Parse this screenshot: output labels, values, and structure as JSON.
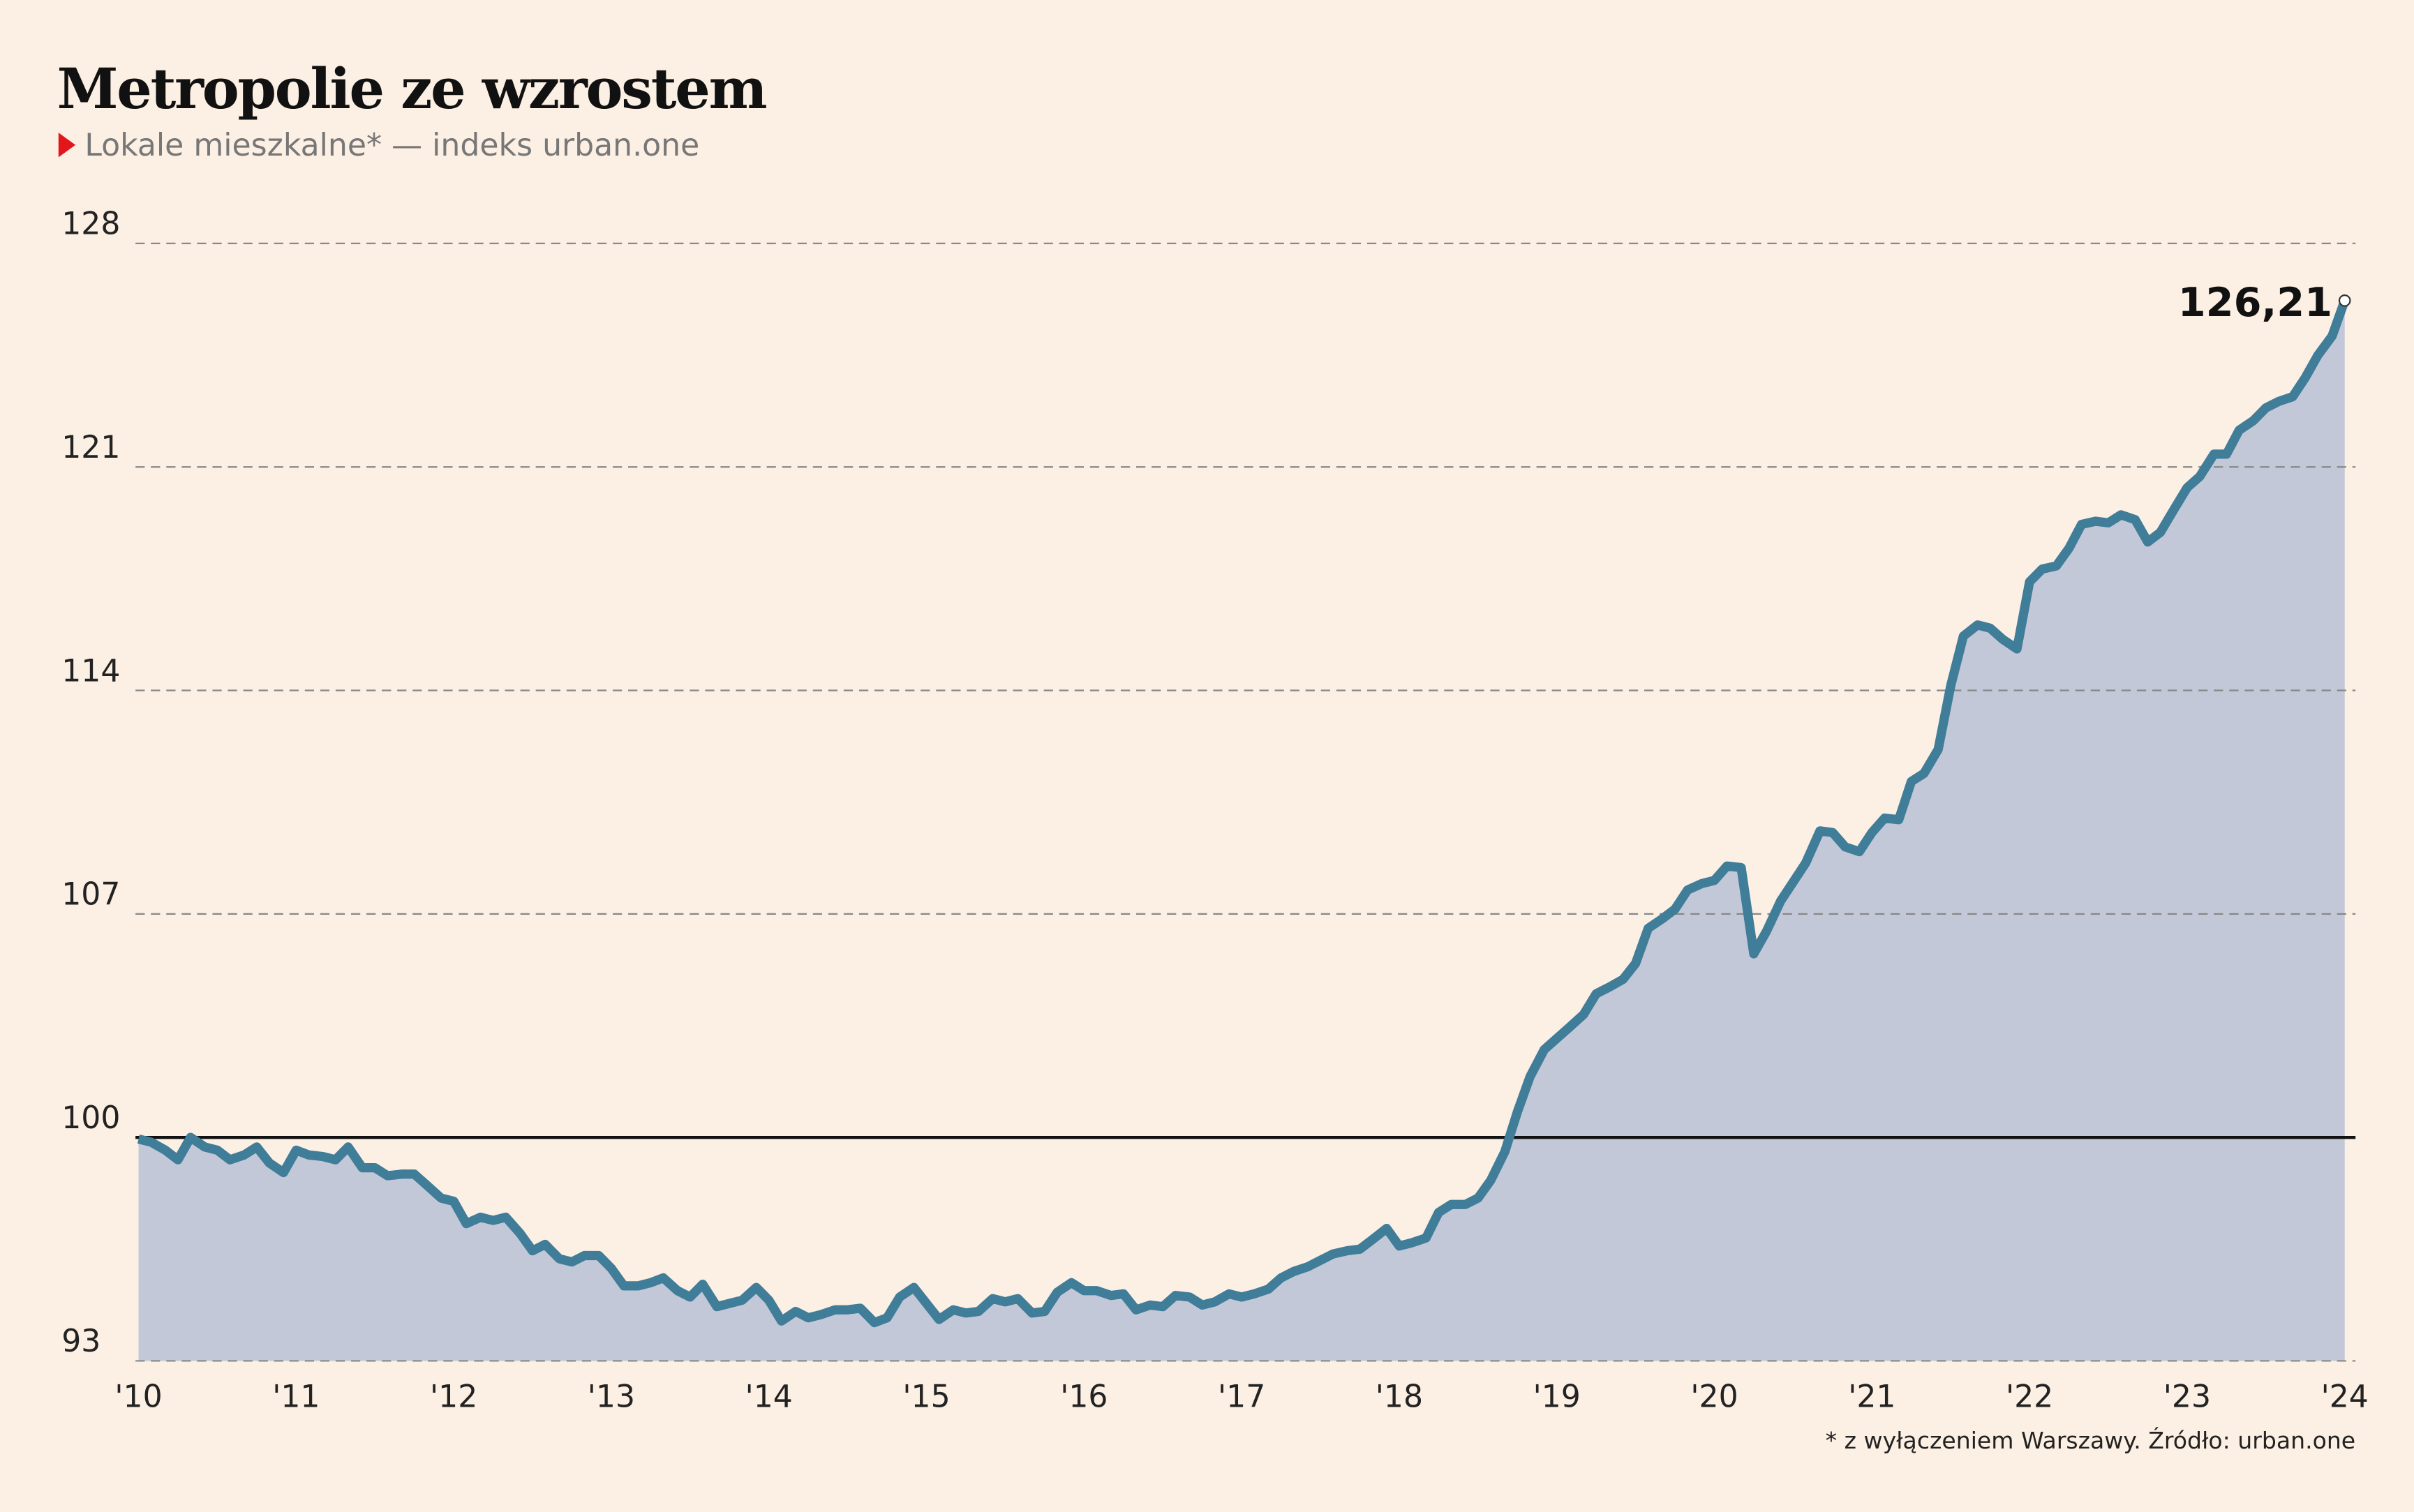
{
  "chart_data": {
    "type": "area",
    "title": "Metropolie ze wzrostem",
    "subtitle": "Lokale mieszkalne* — indeks urban.one",
    "footnote": "* z wyłączeniem Warszawy. Źródło: urban.one",
    "color": "#3f7d99",
    "fill": "#c3c8d8",
    "grid": true,
    "baseline": 100,
    "ylim": [
      93,
      128
    ],
    "yticks": [
      93,
      100,
      107,
      114,
      121,
      128
    ],
    "xlim": [
      2010,
      2024
    ],
    "xticks": [
      {
        "value": 2010,
        "label": "'10"
      },
      {
        "value": 2011,
        "label": "'11"
      },
      {
        "value": 2012,
        "label": "'12"
      },
      {
        "value": 2013,
        "label": "'13"
      },
      {
        "value": 2014,
        "label": "'14"
      },
      {
        "value": 2015,
        "label": "'15"
      },
      {
        "value": 2016,
        "label": "'16"
      },
      {
        "value": 2017,
        "label": "'17"
      },
      {
        "value": 2018,
        "label": "'18"
      },
      {
        "value": 2019,
        "label": "'19"
      },
      {
        "value": 2020,
        "label": "'20"
      },
      {
        "value": 2021,
        "label": "'21"
      },
      {
        "value": 2022,
        "label": "'22"
      },
      {
        "value": 2023,
        "label": "'23"
      },
      {
        "value": 2024,
        "label": "'24"
      }
    ],
    "x": [
      2010,
      2010.08,
      2010.17,
      2010.25,
      2010.33,
      2010.42,
      2010.5,
      2010.58,
      2010.67,
      2010.75,
      2010.83,
      2010.92,
      2011,
      2011.08,
      2011.17,
      2011.25,
      2011.33,
      2011.42,
      2011.5,
      2011.58,
      2011.67,
      2011.75,
      2011.83,
      2011.92,
      2012,
      2012.08,
      2012.17,
      2012.25,
      2012.33,
      2012.42,
      2012.5,
      2012.58,
      2012.67,
      2012.75,
      2012.83,
      2012.92,
      2013,
      2013.08,
      2013.17,
      2013.25,
      2013.33,
      2013.42,
      2013.5,
      2013.58,
      2013.67,
      2013.75,
      2013.83,
      2013.92,
      2014,
      2014.08,
      2014.17,
      2014.25,
      2014.33,
      2014.42,
      2014.5,
      2014.58,
      2014.67,
      2014.75,
      2014.83,
      2014.92,
      2015,
      2015.08,
      2015.17,
      2015.25,
      2015.33,
      2015.42,
      2015.5,
      2015.58,
      2015.67,
      2015.75,
      2015.83,
      2015.92,
      2016,
      2016.08,
      2016.17,
      2016.25,
      2016.33,
      2016.42,
      2016.5,
      2016.58,
      2016.67,
      2016.75,
      2016.83,
      2016.92,
      2017,
      2017.08,
      2017.17,
      2017.25,
      2017.33,
      2017.42,
      2017.5,
      2017.58,
      2017.67,
      2017.75,
      2017.83,
      2017.92,
      2018,
      2018.08,
      2018.17,
      2018.25,
      2018.33,
      2018.42,
      2018.5,
      2018.58,
      2018.67,
      2018.75,
      2018.83,
      2018.92,
      2019,
      2019.08,
      2019.17,
      2019.25,
      2019.33,
      2019.42,
      2019.5,
      2019.58,
      2019.67,
      2019.75,
      2019.83,
      2019.92,
      2020,
      2020.08,
      2020.17,
      2020.25,
      2020.33,
      2020.42,
      2020.5,
      2020.58,
      2020.67,
      2020.75,
      2020.83,
      2020.92,
      2021,
      2021.08,
      2021.17,
      2021.25,
      2021.33,
      2021.42,
      2021.5,
      2021.58,
      2021.67,
      2021.75,
      2021.83,
      2021.92,
      2022,
      2022.08,
      2022.17,
      2022.25,
      2022.33,
      2022.42,
      2022.5,
      2022.58,
      2022.67,
      2022.75,
      2022.83,
      2022.92,
      2023,
      2023.08,
      2023.17,
      2023.25,
      2023.33,
      2023.42,
      2023.5,
      2023.58,
      2023.67,
      2023.75,
      2023.83,
      2023.92,
      2024
    ],
    "values": [
      99.95,
      99.85,
      99.6,
      99.3,
      100.0,
      99.7,
      99.6,
      99.3,
      99.45,
      99.7,
      99.2,
      98.9,
      99.6,
      99.45,
      99.4,
      99.3,
      99.7,
      99.05,
      99.05,
      98.8,
      98.85,
      98.85,
      98.5,
      98.1,
      98.0,
      97.3,
      97.5,
      97.4,
      97.5,
      97.0,
      96.45,
      96.65,
      96.2,
      96.1,
      96.3,
      96.3,
      95.9,
      95.35,
      95.35,
      95.45,
      95.6,
      95.2,
      95.0,
      95.4,
      94.7,
      94.8,
      94.9,
      95.3,
      94.9,
      94.25,
      94.55,
      94.35,
      94.45,
      94.6,
      94.6,
      94.65,
      94.2,
      94.35,
      95.0,
      95.3,
      94.8,
      94.3,
      94.6,
      94.5,
      94.55,
      94.95,
      94.85,
      94.95,
      94.5,
      94.55,
      95.15,
      95.45,
      95.2,
      95.2,
      95.05,
      95.1,
      94.6,
      94.75,
      94.7,
      95.05,
      95.0,
      94.75,
      94.85,
      95.1,
      95.0,
      95.1,
      95.25,
      95.6,
      95.8,
      95.95,
      96.15,
      96.35,
      96.45,
      96.5,
      96.8,
      97.15,
      96.6,
      96.7,
      96.85,
      97.65,
      97.9,
      97.9,
      98.1,
      98.65,
      99.55,
      100.8,
      101.9,
      102.75,
      103.1,
      103.45,
      103.85,
      104.5,
      104.7,
      104.95,
      105.45,
      106.55,
      106.85,
      107.15,
      107.75,
      107.95,
      108.05,
      108.5,
      108.45,
      105.75,
      106.45,
      107.4,
      108.0,
      108.6,
      109.6,
      109.55,
      109.1,
      108.95,
      109.55,
      110.0,
      109.95,
      111.15,
      111.4,
      112.15,
      114.15,
      115.7,
      116.05,
      115.95,
      115.6,
      115.3,
      117.4,
      117.8,
      117.9,
      118.45,
      119.2,
      119.3,
      119.25,
      119.5,
      119.35,
      118.65,
      118.95,
      119.7,
      120.35,
      120.7,
      121.4,
      121.4,
      122.15,
      122.45,
      122.85,
      123.05,
      123.2,
      123.8,
      124.5,
      125.1,
      126.21
    ],
    "last_label": "126,21"
  }
}
